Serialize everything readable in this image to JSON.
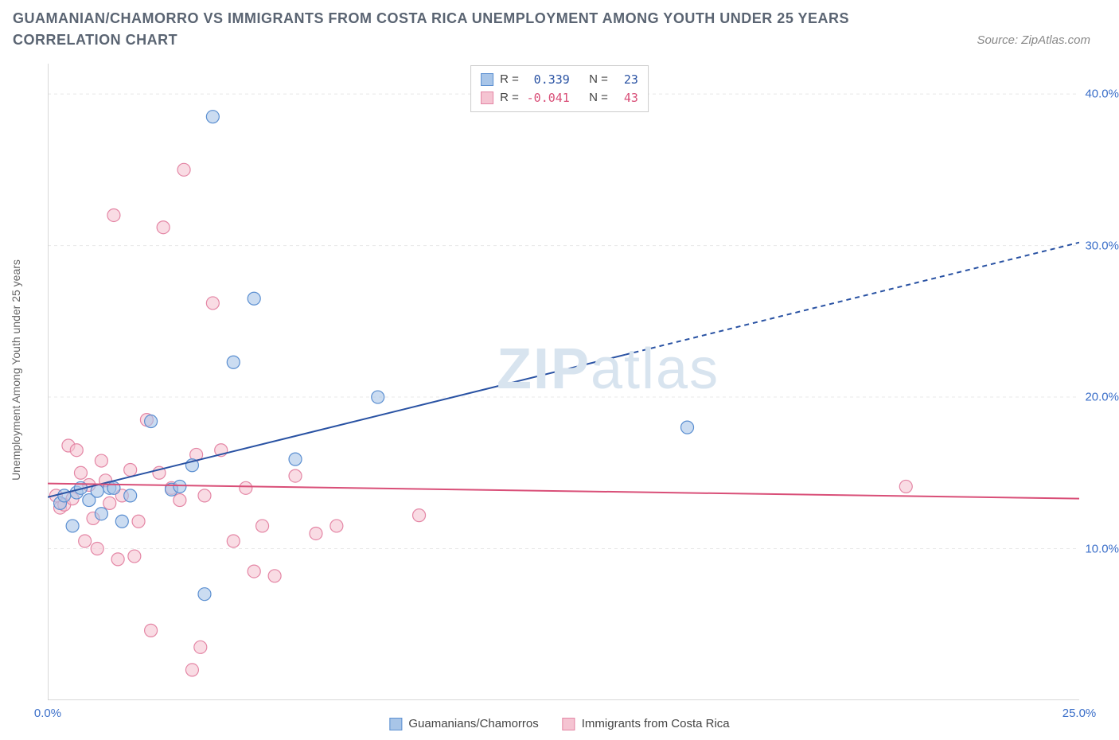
{
  "title": "GUAMANIAN/CHAMORRO VS IMMIGRANTS FROM COSTA RICA UNEMPLOYMENT AMONG YOUTH UNDER 25 YEARS CORRELATION CHART",
  "source": "Source: ZipAtlas.com",
  "watermark_bold": "ZIP",
  "watermark_light": "atlas",
  "y_axis_label": "Unemployment Among Youth under 25 years",
  "chart": {
    "type": "scatter",
    "background_color": "#ffffff",
    "grid_color": "#e8e8e8",
    "axis_color": "#cccccc",
    "xlim": [
      0,
      25
    ],
    "ylim": [
      0,
      42
    ],
    "x_ticks": [
      0,
      5,
      10,
      15,
      20,
      25
    ],
    "x_tick_labels": [
      "0.0%",
      "",
      "",
      "",
      "",
      "25.0%"
    ],
    "x_tick_color": "#3b6fc9",
    "y_ticks": [
      10,
      20,
      30,
      40
    ],
    "y_tick_labels": [
      "10.0%",
      "20.0%",
      "30.0%",
      "40.0%"
    ],
    "y_tick_color": "#3b6fc9",
    "series": [
      {
        "name": "Guamanians/Chamorros",
        "color_fill": "#a8c5e8",
        "color_stroke": "#5b8fd1",
        "marker_radius": 8,
        "marker_opacity": 0.6,
        "trend_color": "#2952a3",
        "trend_width": 2,
        "trend_start": [
          0,
          13.4
        ],
        "trend_end_solid": [
          14.0,
          22.8
        ],
        "trend_end_dash": [
          25,
          30.2
        ],
        "R": "0.339",
        "N": "23",
        "points": [
          [
            0.3,
            13.0
          ],
          [
            0.4,
            13.5
          ],
          [
            0.6,
            11.5
          ],
          [
            0.7,
            13.7
          ],
          [
            0.8,
            14.0
          ],
          [
            1.0,
            13.2
          ],
          [
            1.2,
            13.8
          ],
          [
            1.3,
            12.3
          ],
          [
            1.5,
            14.0
          ],
          [
            1.6,
            14.0
          ],
          [
            1.8,
            11.8
          ],
          [
            2.0,
            13.5
          ],
          [
            2.5,
            18.4
          ],
          [
            3.0,
            13.9
          ],
          [
            3.2,
            14.1
          ],
          [
            3.5,
            15.5
          ],
          [
            3.8,
            7.0
          ],
          [
            4.0,
            38.5
          ],
          [
            4.5,
            22.3
          ],
          [
            5.0,
            26.5
          ],
          [
            6.0,
            15.9
          ],
          [
            8.0,
            20.0
          ],
          [
            15.5,
            18.0
          ]
        ]
      },
      {
        "name": "Immigrants from Costa Rica",
        "color_fill": "#f5c4d2",
        "color_stroke": "#e486a5",
        "marker_radius": 8,
        "marker_opacity": 0.6,
        "trend_color": "#d94f78",
        "trend_width": 2,
        "trend_start": [
          0,
          14.3
        ],
        "trend_end_solid": [
          25,
          13.3
        ],
        "R": "-0.041",
        "N": "43",
        "points": [
          [
            0.2,
            13.5
          ],
          [
            0.3,
            12.7
          ],
          [
            0.4,
            12.9
          ],
          [
            0.5,
            16.8
          ],
          [
            0.6,
            13.3
          ],
          [
            0.7,
            16.5
          ],
          [
            0.8,
            15.0
          ],
          [
            0.9,
            10.5
          ],
          [
            1.0,
            14.2
          ],
          [
            1.1,
            12.0
          ],
          [
            1.2,
            10.0
          ],
          [
            1.3,
            15.8
          ],
          [
            1.4,
            14.5
          ],
          [
            1.5,
            13.0
          ],
          [
            1.6,
            32.0
          ],
          [
            1.7,
            9.3
          ],
          [
            1.8,
            13.5
          ],
          [
            2.0,
            15.2
          ],
          [
            2.1,
            9.5
          ],
          [
            2.2,
            11.8
          ],
          [
            2.4,
            18.5
          ],
          [
            2.5,
            4.6
          ],
          [
            2.7,
            15.0
          ],
          [
            2.8,
            31.2
          ],
          [
            3.0,
            14.0
          ],
          [
            3.2,
            13.2
          ],
          [
            3.3,
            35.0
          ],
          [
            3.5,
            2.0
          ],
          [
            3.6,
            16.2
          ],
          [
            3.8,
            13.5
          ],
          [
            3.7,
            3.5
          ],
          [
            4.0,
            26.2
          ],
          [
            4.2,
            16.5
          ],
          [
            4.5,
            10.5
          ],
          [
            4.8,
            14.0
          ],
          [
            5.0,
            8.5
          ],
          [
            5.2,
            11.5
          ],
          [
            5.5,
            8.2
          ],
          [
            6.0,
            14.8
          ],
          [
            6.5,
            11.0
          ],
          [
            7.0,
            11.5
          ],
          [
            9.0,
            12.2
          ],
          [
            20.8,
            14.1
          ]
        ]
      }
    ]
  },
  "legend_top": {
    "r_label": "R =",
    "n_label": "N ="
  },
  "legend_bottom": [
    {
      "label": "Guamanians/Chamorros",
      "fill": "#a8c5e8",
      "stroke": "#5b8fd1"
    },
    {
      "label": "Immigrants from Costa Rica",
      "fill": "#f5c4d2",
      "stroke": "#e486a5"
    }
  ]
}
